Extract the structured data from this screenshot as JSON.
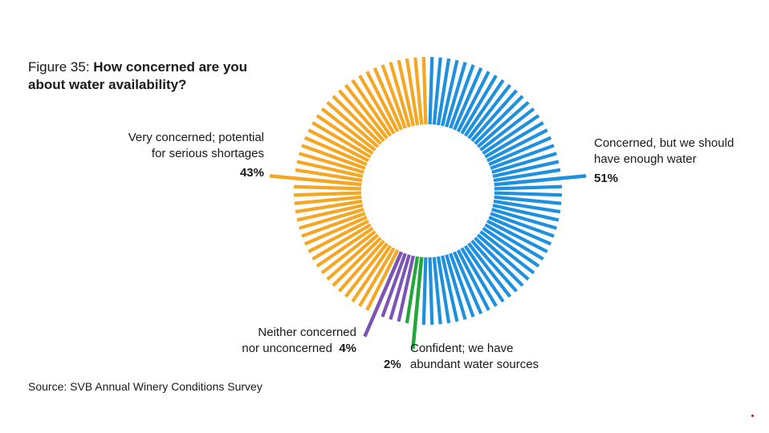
{
  "chart_data": {
    "type": "pie",
    "style": "radial-bar donut",
    "title_prefix": "Figure 35: ",
    "title": "How concerned are you about water availability?",
    "source": "Source: SVB Annual Winery Conditions Survey",
    "slices": [
      {
        "label_line1": "Concerned, but we should",
        "label_line2": "have enough water",
        "value": 51,
        "pct_label": "51%",
        "color": "#1e90e0"
      },
      {
        "label_line1": "Confident; we have",
        "label_line2": "abundant water sources",
        "value": 2,
        "pct_label": "2%",
        "color": "#22a83a"
      },
      {
        "label_line1": "Neither concerned",
        "label_line2": "nor unconcerned",
        "value": 4,
        "pct_label": "4%",
        "color": "#7b55b5"
      },
      {
        "label_line1": "Very concerned; potential",
        "label_line2": "for serious shortages",
        "value": 43,
        "pct_label": "43%",
        "color": "#f5a623"
      }
    ]
  }
}
